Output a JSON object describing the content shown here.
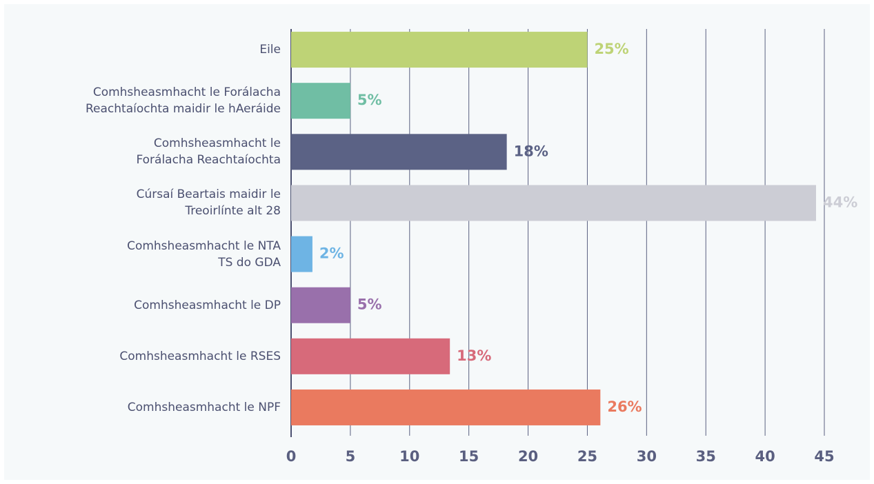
{
  "chart_data": {
    "type": "barh",
    "categories": [
      "Eile",
      "Comhsheasmhacht le Forálacha\nReachtaíochta maidir le hAeráide",
      "Comhsheasmhacht le\nForálacha Reachtaíochta",
      "Cúrsaí Beartais maidir le\nTreoirlínte alt 28",
      "Comhsheasmhacht le NTA\nTS do GDA",
      "Comhsheasmhacht le DP",
      "Comhsheasmhacht le RSES",
      "Comhsheasmhacht le NPF"
    ],
    "values": [
      25,
      5,
      18.2,
      44.3,
      1.8,
      5,
      13.4,
      26.1
    ],
    "value_labels": [
      "25%",
      "5%",
      "18%",
      "44%",
      "2%",
      "5%",
      "13%",
      "26%"
    ],
    "colors": [
      "#bed376",
      "#70bea4",
      "#5b6285",
      "#cccdd5",
      "#6eb4e4",
      "#9970ab",
      "#d76a7a",
      "#ea7a5f"
    ],
    "xlim": [
      0,
      45
    ],
    "xticks": [
      0,
      5,
      10,
      15,
      20,
      25,
      30,
      35,
      40,
      45
    ],
    "grid": true
  }
}
